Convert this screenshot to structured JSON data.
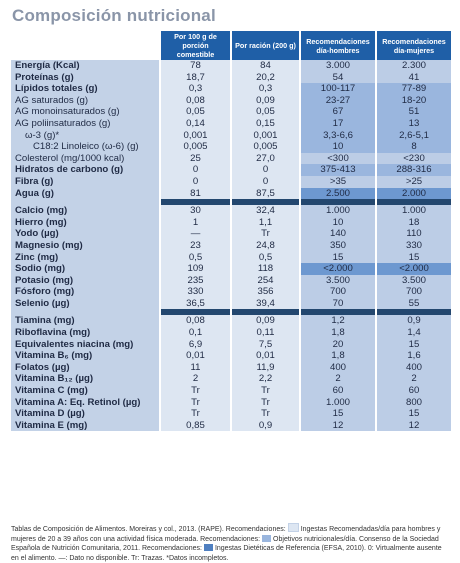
{
  "title": "Composición nutricional",
  "headers": [
    "Por 100 g de porción comestible",
    "Por ración (200 g)",
    "Recomendaciones día-hombres",
    "Recomendaciones día-mujeres"
  ],
  "groups": [
    [
      {
        "name": "Energía (Kcal)",
        "bold": true,
        "v": [
          "78",
          "84",
          "3.000",
          "2.300"
        ]
      },
      {
        "name": "Proteínas (g)",
        "bold": true,
        "v": [
          "18,7",
          "20,2",
          "54",
          "41"
        ]
      },
      {
        "name": "Lípidos totales (g)",
        "bold": true,
        "v": [
          "0,3",
          "0,3",
          "100-117",
          "77-89"
        ],
        "hl": "mid"
      },
      {
        "name": "AG saturados (g)",
        "v": [
          "0,08",
          "0,09",
          "23-27",
          "18-20"
        ],
        "hl": "mid"
      },
      {
        "name": "AG monoinsaturados (g)",
        "v": [
          "0,05",
          "0,05",
          "67",
          "51"
        ],
        "hl": "mid"
      },
      {
        "name": "AG poliinsaturados (g)",
        "v": [
          "0,14",
          "0,15",
          "17",
          "13"
        ],
        "hl": "mid"
      },
      {
        "name": "ω-3 (g)*",
        "indent": 1,
        "v": [
          "0,001",
          "0,001",
          "3,3-6,6",
          "2,6-5,1"
        ],
        "hl": "mid"
      },
      {
        "name": "C18:2 Linoleico (ω-6) (g)",
        "indent": 2,
        "v": [
          "0,005",
          "0,005",
          "10",
          "8"
        ],
        "hl": "mid"
      },
      {
        "name": "Colesterol (mg/1000 kcal)",
        "v": [
          "25",
          "27,0",
          "<300",
          "<230"
        ]
      },
      {
        "name": "Hidratos de carbono (g)",
        "bold": true,
        "v": [
          "0",
          "0",
          "375-413",
          "288-316"
        ],
        "hl": "mid"
      },
      {
        "name": "Fibra (g)",
        "bold": true,
        "v": [
          "0",
          "0",
          ">35",
          ">25"
        ]
      },
      {
        "name": "Agua (g)",
        "bold": true,
        "v": [
          "81",
          "87,5",
          "2.500",
          "2.000"
        ],
        "hl": "hl"
      }
    ],
    [
      {
        "name": "Calcio (mg)",
        "bold": true,
        "v": [
          "30",
          "32,4",
          "1.000",
          "1.000"
        ]
      },
      {
        "name": "Hierro (mg)",
        "bold": true,
        "v": [
          "1",
          "1,1",
          "10",
          "18"
        ]
      },
      {
        "name": "Yodo (µg)",
        "bold": true,
        "v": [
          "—",
          "Tr",
          "140",
          "110"
        ]
      },
      {
        "name": "Magnesio (mg)",
        "bold": true,
        "v": [
          "23",
          "24,8",
          "350",
          "330"
        ]
      },
      {
        "name": "Zinc (mg)",
        "bold": true,
        "v": [
          "0,5",
          "0,5",
          "15",
          "15"
        ]
      },
      {
        "name": "Sodio (mg)",
        "bold": true,
        "v": [
          "109",
          "118",
          "<2.000",
          "<2.000"
        ],
        "hl": "hl"
      },
      {
        "name": "Potasio (mg)",
        "bold": true,
        "v": [
          "235",
          "254",
          "3.500",
          "3.500"
        ]
      },
      {
        "name": "Fósforo (mg)",
        "bold": true,
        "v": [
          "330",
          "356",
          "700",
          "700"
        ]
      },
      {
        "name": "Selenio (µg)",
        "bold": true,
        "v": [
          "36,5",
          "39,4",
          "70",
          "55"
        ]
      }
    ],
    [
      {
        "name": "Tiamina (mg)",
        "bold": true,
        "v": [
          "0,08",
          "0,09",
          "1,2",
          "0,9"
        ]
      },
      {
        "name": "Riboflavina (mg)",
        "bold": true,
        "v": [
          "0,1",
          "0,11",
          "1,8",
          "1,4"
        ]
      },
      {
        "name": "Equivalentes niacina (mg)",
        "bold": true,
        "v": [
          "6,9",
          "7,5",
          "20",
          "15"
        ]
      },
      {
        "name": "Vitamina B₆ (mg)",
        "bold": true,
        "v": [
          "0,01",
          "0,01",
          "1,8",
          "1,6"
        ]
      },
      {
        "name": "Folatos (µg)",
        "bold": true,
        "v": [
          "11",
          "11,9",
          "400",
          "400"
        ]
      },
      {
        "name": "Vitamina B₁₂ (µg)",
        "bold": true,
        "v": [
          "2",
          "2,2",
          "2",
          "2"
        ]
      },
      {
        "name": "Vitamina C (mg)",
        "bold": true,
        "v": [
          "Tr",
          "Tr",
          "60",
          "60"
        ]
      },
      {
        "name": "Vitamina A: Eq. Retinol (µg)",
        "bold": true,
        "v": [
          "Tr",
          "Tr",
          "1.000",
          "800"
        ]
      },
      {
        "name": "Vitamina D (µg)",
        "bold": true,
        "v": [
          "Tr",
          "Tr",
          "15",
          "15"
        ]
      },
      {
        "name": "Vitamina E (mg)",
        "bold": true,
        "v": [
          "0,85",
          "0,9",
          "12",
          "12"
        ]
      }
    ]
  ],
  "footnote": {
    "p1": "Tablas de Composición de Alimentos. Moreiras y col., 2013. (RAPE). Recomendaciones:",
    "p2": "Ingestas Recomendadas/día para hombres y mujeres de 20 a 39 años con una actividad física moderada. Recomendaciones:",
    "p3": "Objetivos nutricionales/día. Consenso de la Sociedad Española de Nutrición Comunitaria, 2011. Recomendaciones:",
    "p4": "Ingestas Dietéticas de Referencia (EFSA, 2010). 0: Virtualmente ausente en el alimento. —: Dato no disponible. Tr: Trazas. *Datos incompletos."
  }
}
